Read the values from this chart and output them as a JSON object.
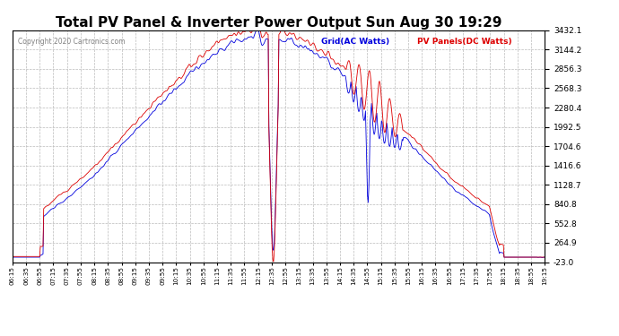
{
  "title": "Total PV Panel & Inverter Power Output Sun Aug 30 19:29",
  "copyright": "Copyright 2020 Cartronics.com",
  "legend_blue": "Grid(AC Watts)",
  "legend_red": "PV Panels(DC Watts)",
  "yticks": [
    -23.0,
    264.9,
    552.8,
    840.8,
    1128.7,
    1416.6,
    1704.6,
    1992.5,
    2280.4,
    2568.3,
    2856.3,
    3144.2,
    3432.1
  ],
  "ymin": -23.0,
  "ymax": 3432.1,
  "bg_color": "#ffffff",
  "grid_color": "#bbbbbb",
  "blue_color": "#0000dd",
  "red_color": "#dd0000",
  "title_fontsize": 11
}
